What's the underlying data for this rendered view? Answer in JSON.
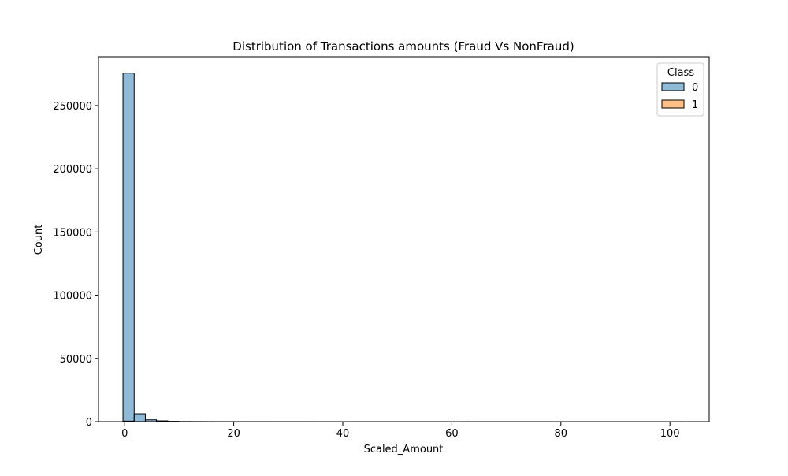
{
  "chart_data": {
    "type": "bar",
    "title": "Distribution of Transactions amounts (Fraud Vs NonFraud)",
    "xlabel": "Scaled_Amount",
    "ylabel": "Count",
    "xlim": [
      -4.8,
      107.2
    ],
    "ylim": [
      0,
      288600
    ],
    "xticks": [
      0,
      20,
      40,
      60,
      80,
      100
    ],
    "yticks": [
      0,
      50000,
      100000,
      150000,
      200000,
      250000
    ],
    "xtick_labels": [
      "0",
      "20",
      "40",
      "60",
      "80",
      "100"
    ],
    "ytick_labels": [
      "0",
      "50000",
      "100000",
      "150000",
      "200000",
      "250000"
    ],
    "grid": false,
    "legend": {
      "title": "Class",
      "placement": "top-right",
      "entries": [
        {
          "label": "0",
          "color": "#1f77b4"
        },
        {
          "label": "1",
          "color": "#ff7f0e"
        }
      ]
    },
    "bin_start": -0.31,
    "bin_width": 2.05,
    "series": [
      {
        "name": "0",
        "color": "#1f77b4",
        "values": [
          275700,
          6200,
          1400,
          600,
          250,
          120,
          70,
          45,
          30,
          22,
          16,
          12,
          10,
          8,
          6,
          5,
          4,
          3,
          3,
          2,
          2,
          2,
          1,
          1,
          1,
          1,
          1,
          1,
          1,
          0,
          1,
          0,
          0,
          0,
          0,
          0,
          0,
          0,
          0,
          0,
          0,
          0,
          0,
          0,
          0,
          0,
          0,
          0,
          0,
          1
        ]
      },
      {
        "name": "1",
        "color": "#ff7f0e",
        "values": [
          400,
          40,
          10,
          4,
          2,
          1,
          1,
          0,
          0,
          0,
          0,
          0,
          0,
          0,
          0,
          0,
          0,
          0,
          0,
          0,
          0,
          0,
          0,
          0,
          0,
          0,
          0,
          0,
          0,
          0,
          0,
          0,
          0,
          0,
          0,
          0,
          0,
          0,
          0,
          0,
          0,
          0,
          0,
          0,
          0,
          0,
          0,
          0,
          0,
          0
        ]
      }
    ]
  }
}
